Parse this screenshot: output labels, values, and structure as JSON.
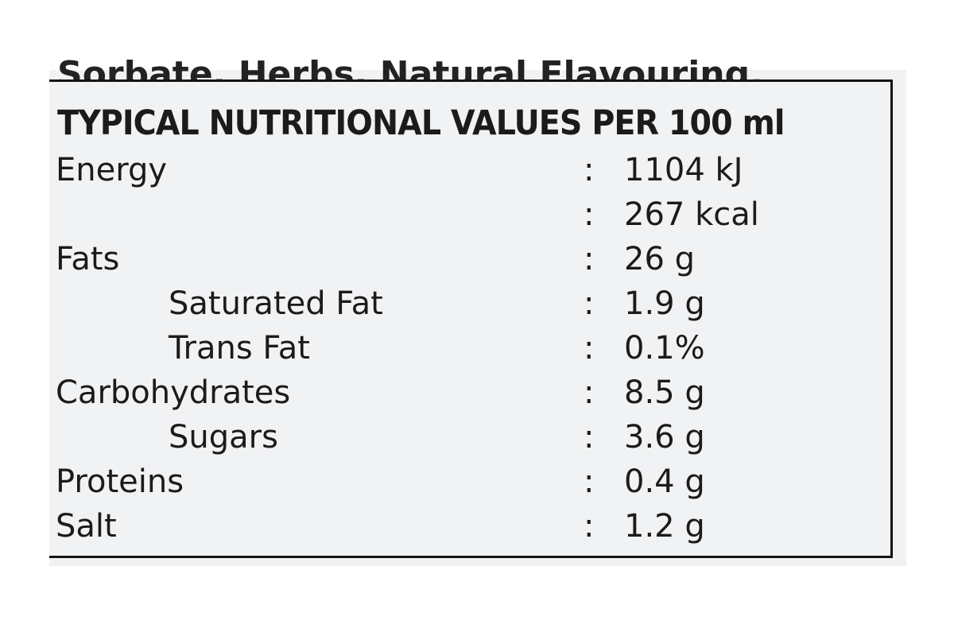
{
  "fragment": "Sorbate, Herbs, Natural Flavouring.",
  "title": "TYPICAL NUTRITIONAL VALUES PER 100 ml",
  "nutrients": [
    {
      "label": "Energy",
      "values": [
        "1104 kJ",
        "267 kcal"
      ]
    },
    {
      "label": "Fats",
      "values": [
        "26 g"
      ],
      "sub": [
        {
          "label": "Saturated Fat",
          "values": [
            "1.9 g"
          ]
        },
        {
          "label": "Trans Fat",
          "values": [
            "0.1%"
          ]
        }
      ]
    },
    {
      "label": "Carbohydrates",
      "values": [
        "8.5 g"
      ],
      "sub": [
        {
          "label": "Sugars",
          "values": [
            "3.6 g"
          ]
        }
      ]
    },
    {
      "label": "Proteins",
      "values": [
        "0.4 g"
      ]
    },
    {
      "label": "Salt",
      "values": [
        "1.2 g"
      ]
    }
  ]
}
